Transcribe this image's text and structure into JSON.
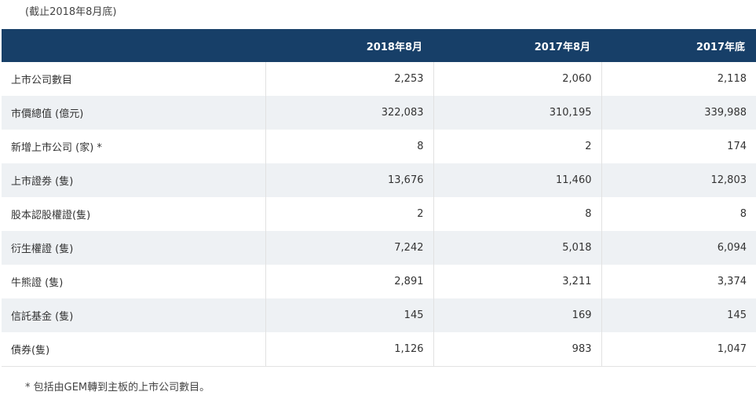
{
  "note_top": "(截止2018年8月底)",
  "header": [
    "",
    "2018年8月",
    "2017年8月",
    "2017年底"
  ],
  "rows": [
    {
      "label": "上市公司數目",
      "values": [
        "2,253",
        "2,060",
        "2,118"
      ]
    },
    {
      "label": "市價總值 (億元)",
      "values": [
        "322,083",
        "310,195",
        "339,988"
      ]
    },
    {
      "label": "新增上市公司 (家) *",
      "values": [
        "8",
        "2",
        "174"
      ]
    },
    {
      "label": "上市證劵 (隻)",
      "values": [
        "13,676",
        "11,460",
        "12,803"
      ]
    },
    {
      "label": "股本認股權證(隻)",
      "values": [
        "2",
        "8",
        "8"
      ]
    },
    {
      "label": "衍生權證 (隻)",
      "values": [
        "7,242",
        "5,018",
        "6,094"
      ]
    },
    {
      "label": "牛熊證 (隻)",
      "values": [
        "2,891",
        "3,211",
        "3,374"
      ]
    },
    {
      "label": "信託基金 (隻)",
      "values": [
        "145",
        "169",
        "145"
      ]
    },
    {
      "label": "債券(隻)",
      "values": [
        "1,126",
        "983",
        "1,047"
      ]
    }
  ],
  "note_bottom": "* 包括由GEM轉到主板的上市公司數目。",
  "colors": {
    "header_bg": "#173f68",
    "stripe_bg": "#eef1f4"
  }
}
